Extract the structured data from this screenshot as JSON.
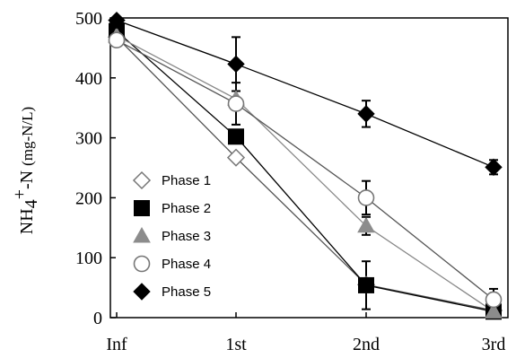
{
  "chart_data": {
    "type": "line",
    "categories": [
      "Inf",
      "1st",
      "2nd",
      "3rd"
    ],
    "ylabel": {
      "prefix": "NH",
      "sub": "4",
      "sup": "+",
      "suffix": "-N ",
      "unit": "(mg-N/L)"
    },
    "ylim": [
      0,
      500
    ],
    "yticks": [
      0,
      100,
      200,
      300,
      400,
      500
    ],
    "grid": false,
    "legend_position": "left-center",
    "series": [
      {
        "name": "Phase 1",
        "marker": "diamond-open",
        "color": "#555555",
        "values": [
          468,
          267,
          55,
          12
        ],
        "errors": [
          0,
          0,
          0,
          0
        ]
      },
      {
        "name": "Phase 2",
        "marker": "square-filled",
        "color": "#000000",
        "values": [
          478,
          302,
          54,
          10
        ],
        "errors": [
          0,
          0,
          40,
          0
        ]
      },
      {
        "name": "Phase 3",
        "marker": "triangle-gray",
        "color": "#888888",
        "values": [
          470,
          365,
          153,
          10
        ],
        "errors": [
          0,
          0,
          15,
          0
        ]
      },
      {
        "name": "Phase 4",
        "marker": "circle-open",
        "color": "#555555",
        "values": [
          463,
          357,
          200,
          30
        ],
        "errors": [
          0,
          35,
          28,
          18
        ]
      },
      {
        "name": "Phase 5",
        "marker": "diamond-filled",
        "color": "#000000",
        "values": [
          496,
          423,
          340,
          251
        ],
        "errors": [
          0,
          45,
          22,
          12
        ]
      }
    ]
  }
}
